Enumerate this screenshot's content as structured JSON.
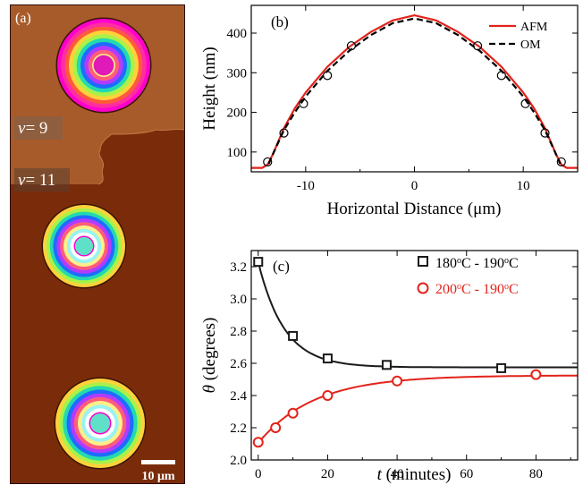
{
  "figure": {
    "panel_a": {
      "label": "(a)",
      "annotations": [
        {
          "prefix": "ν",
          "text": "= 9"
        },
        {
          "prefix": "ν",
          "text": "= 11"
        }
      ],
      "scale_bar": "10 μm",
      "colors": {
        "background_dark": "#7a2c0a",
        "background_light": "#a85b2a",
        "frame": "#2a0d03",
        "ring_colors": [
          "#ff00cc",
          "#ff2fa0",
          "#ff5a3c",
          "#ffd23a",
          "#a8f24a",
          "#23d9b0",
          "#1f6bff",
          "#b33bff",
          "#ff5d7a",
          "#ffef8a",
          "#9af3f0",
          "#ffffff"
        ]
      }
    }
  },
  "chart_data": [
    {
      "panel": "(b)",
      "type": "line",
      "xlabel": "Horizontal Distance (μm)",
      "ylabel": "Height (nm)",
      "xlim": [
        -15,
        15
      ],
      "ylim": [
        50,
        470
      ],
      "xticks": [
        -10,
        0,
        10
      ],
      "yticks": [
        100,
        200,
        300,
        400
      ],
      "legend": {
        "placement": "top-right"
      },
      "series": [
        {
          "name": "AFM",
          "style": "solid",
          "color": "#e2231a",
          "x": [
            -15,
            -14,
            -13.5,
            -13,
            -12,
            -11,
            -10,
            -8,
            -6,
            -4,
            -2,
            0,
            2,
            4,
            6,
            8,
            10,
            11,
            12,
            13,
            13.5,
            14,
            15
          ],
          "y": [
            60,
            60,
            68,
            95,
            160,
            210,
            250,
            315,
            365,
            403,
            432,
            445,
            432,
            403,
            365,
            315,
            250,
            210,
            160,
            95,
            68,
            60,
            60
          ]
        },
        {
          "name": "OM",
          "style": "dashed",
          "color": "#000000",
          "x": [
            -13.4,
            -13,
            -12,
            -11,
            -10,
            -8,
            -6,
            -4,
            -2,
            0,
            2,
            4,
            6,
            8,
            10,
            11,
            12,
            13,
            13.4
          ],
          "y": [
            70,
            95,
            155,
            200,
            240,
            305,
            355,
            395,
            425,
            437,
            425,
            395,
            355,
            305,
            240,
            200,
            155,
            95,
            70
          ]
        },
        {
          "name": "",
          "style": "open-circle",
          "color": "#000000",
          "x": [
            -13.5,
            -12,
            -10.2,
            -8,
            -5.8,
            5.8,
            8,
            10.2,
            12,
            13.5
          ],
          "y": [
            75,
            148,
            222,
            293,
            368,
            368,
            293,
            222,
            148,
            75
          ]
        }
      ]
    },
    {
      "panel": "(c)",
      "type": "scatter",
      "xlabel_var": "t",
      "xlabel_unit": " (minutes)",
      "ylabel_var": "θ",
      "ylabel_unit": " (degrees)",
      "xlim": [
        -2,
        92
      ],
      "ylim": [
        2.0,
        3.3
      ],
      "xticks": [
        0,
        20,
        40,
        60,
        80
      ],
      "yticks": [
        2.0,
        2.2,
        2.4,
        2.6,
        2.8,
        3.0,
        3.2
      ],
      "legend": {
        "placement": "top-right"
      },
      "series": [
        {
          "name": "180°C - 190°C",
          "name_parts": [
            "180",
            "o",
            "C - 190",
            "o",
            "C"
          ],
          "marker": "square",
          "color": "#1a1a1a",
          "x": [
            0,
            10,
            20,
            37,
            70
          ],
          "y": [
            3.23,
            2.77,
            2.63,
            2.59,
            2.57
          ]
        },
        {
          "name": "200°C - 190°C",
          "name_parts": [
            "200",
            "o",
            "C - 190",
            "o",
            "C"
          ],
          "marker": "circle",
          "color": "#e2231a",
          "x": [
            0,
            5,
            10,
            20,
            40,
            80
          ],
          "y": [
            2.11,
            2.2,
            2.29,
            2.4,
            2.49,
            2.53
          ]
        }
      ],
      "fits": [
        {
          "color": "#1a1a1a",
          "a": 2.575,
          "b": 0.655,
          "tau": 7.5
        },
        {
          "color": "#e2231a",
          "a": 2.525,
          "b": -0.42,
          "tau": 16
        }
      ]
    }
  ]
}
